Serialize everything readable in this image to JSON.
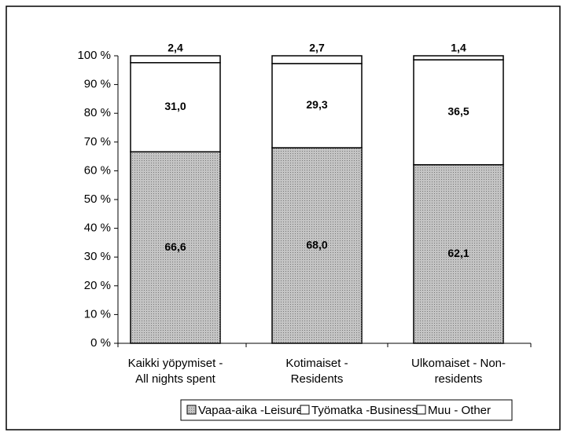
{
  "chart_data": {
    "type": "stacked_bar",
    "categories": [
      [
        "Kaikki yöpymiset -",
        "All nights spent"
      ],
      [
        "Kotimaiset -",
        "Residents"
      ],
      [
        "Ulkomaiset - Non-",
        "residents"
      ]
    ],
    "series": [
      {
        "name": "Vapaa-aika -Leisure",
        "color": "#c4c4c4",
        "values": [
          66.6,
          68.0,
          62.1
        ],
        "value_labels": [
          "66,6",
          "68,0",
          "62,1"
        ]
      },
      {
        "name": "Työmatka -Business",
        "color": "#ffffff",
        "values": [
          31.0,
          29.3,
          36.5
        ],
        "value_labels": [
          "31,0",
          "29,3",
          "36,5"
        ]
      },
      {
        "name": "Muu - Other",
        "color": "#ffffff",
        "values": [
          2.4,
          2.7,
          1.4
        ],
        "value_labels": [
          "2,4",
          "2,7",
          "1,4"
        ]
      }
    ],
    "ylim": [
      0,
      100
    ],
    "yticks": [
      {
        "value": 0,
        "label": "0 %"
      },
      {
        "value": 10,
        "label": "10 %"
      },
      {
        "value": 20,
        "label": "20 %"
      },
      {
        "value": 30,
        "label": "30 %"
      },
      {
        "value": 40,
        "label": "40 %"
      },
      {
        "value": 50,
        "label": "50 %"
      },
      {
        "value": 60,
        "label": "60 %"
      },
      {
        "value": 70,
        "label": "70 %"
      },
      {
        "value": 80,
        "label": "80 %"
      },
      {
        "value": 90,
        "label": "90 %"
      },
      {
        "value": 100,
        "label": "100 %"
      }
    ],
    "legend": "bottom"
  }
}
